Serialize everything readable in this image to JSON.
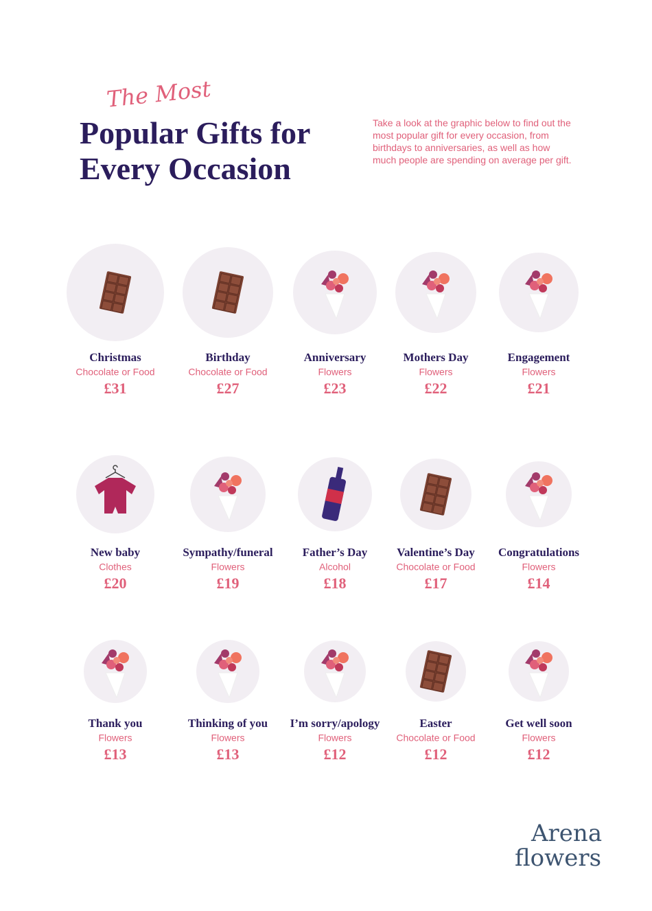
{
  "header": {
    "kicker": "The Most",
    "title_lines": [
      "Popular Gifts for",
      "Every Occasion"
    ],
    "description": "Take a look at the graphic below to find out the most popular gift for every occasion, from birthdays to anniversaries, as well as how much people are spending on average per gift."
  },
  "items": [
    {
      "occasion": "Christmas",
      "gift": "Chocolate or Food",
      "price": "£31"
    },
    {
      "occasion": "Birthday",
      "gift": "Chocolate or Food",
      "price": "£27"
    },
    {
      "occasion": "Anniversary",
      "gift": "Flowers",
      "price": "£23"
    },
    {
      "occasion": "Mothers Day",
      "gift": "Flowers",
      "price": "£22"
    },
    {
      "occasion": "Engagement",
      "gift": "Flowers",
      "price": "£21"
    },
    {
      "occasion": "New baby",
      "gift": "Clothes",
      "price": "£20"
    },
    {
      "occasion": "Sympathy/funeral",
      "gift": "Flowers",
      "price": "£19"
    },
    {
      "occasion": "Father’s Day",
      "gift": "Alcohol",
      "price": "£18"
    },
    {
      "occasion": "Valentine’s Day",
      "gift": "Chocolate or Food",
      "price": "£17"
    },
    {
      "occasion": "Congratulations",
      "gift": "Flowers",
      "price": "£14"
    },
    {
      "occasion": "Thank you",
      "gift": "Flowers",
      "price": "£13"
    },
    {
      "occasion": "Thinking of you",
      "gift": "Flowers",
      "price": "£13"
    },
    {
      "occasion": "I’m sorry/apology",
      "gift": "Flowers",
      "price": "£12"
    },
    {
      "occasion": "Easter",
      "gift": "Chocolate or Food",
      "price": "£12"
    },
    {
      "occasion": "Get well soon",
      "gift": "Flowers",
      "price": "£12"
    }
  ],
  "logo": {
    "line1": "Arena",
    "line2": "flowers"
  }
}
